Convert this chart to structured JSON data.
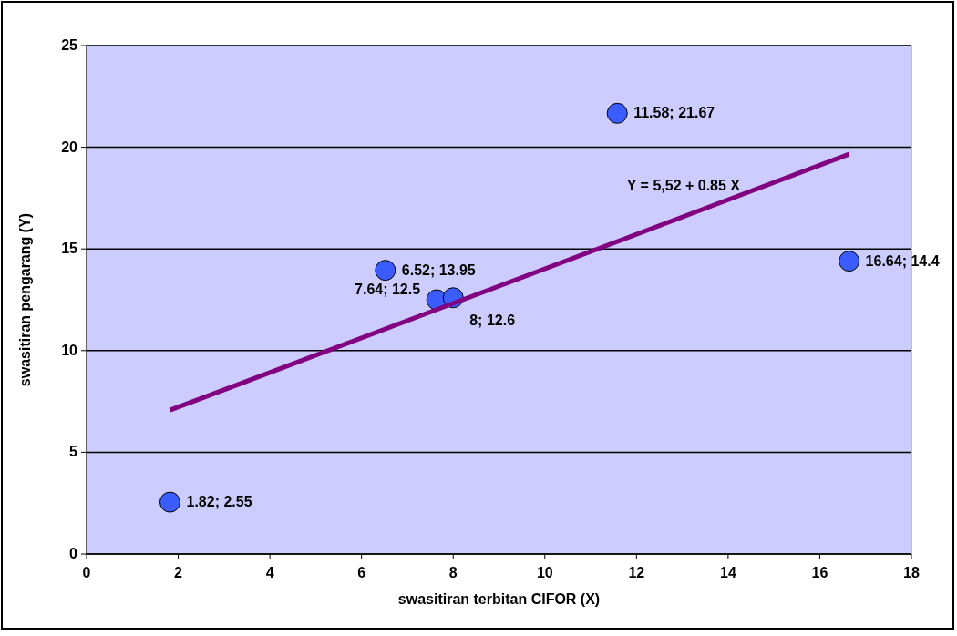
{
  "chart_data": {
    "type": "scatter",
    "xlabel": "swasitiran terbitan CIFOR (X)",
    "ylabel": "swasitiran pengarang (Y)",
    "xlim": [
      0,
      18
    ],
    "xticks": [
      0,
      2,
      4,
      6,
      8,
      10,
      12,
      14,
      16,
      18
    ],
    "ylim": [
      0,
      25
    ],
    "yticks": [
      0,
      5,
      10,
      15,
      20,
      25
    ],
    "grid": "y",
    "marker": "circle",
    "series": [
      {
        "color": "#3b5cff",
        "x": [
          1.82,
          6.52,
          7.64,
          8,
          11.58,
          16.64
        ],
        "values": [
          2.55,
          13.95,
          12.5,
          12.6,
          21.67,
          14.4
        ],
        "value_labels": [
          "1.82; 2.55",
          "6.52; 13.95",
          "7.64; 12.5",
          "8; 12.6",
          "11.58; 21.67",
          "16.64; 14.4"
        ]
      },
      {
        "type": "line",
        "color": "#800080",
        "x": [
          1.82,
          16.64
        ],
        "values": [
          7.07,
          19.66
        ],
        "line_style": "solid",
        "marker": "none"
      }
    ],
    "annotations": [
      "Y = 5,52 + 0.85 X"
    ]
  }
}
